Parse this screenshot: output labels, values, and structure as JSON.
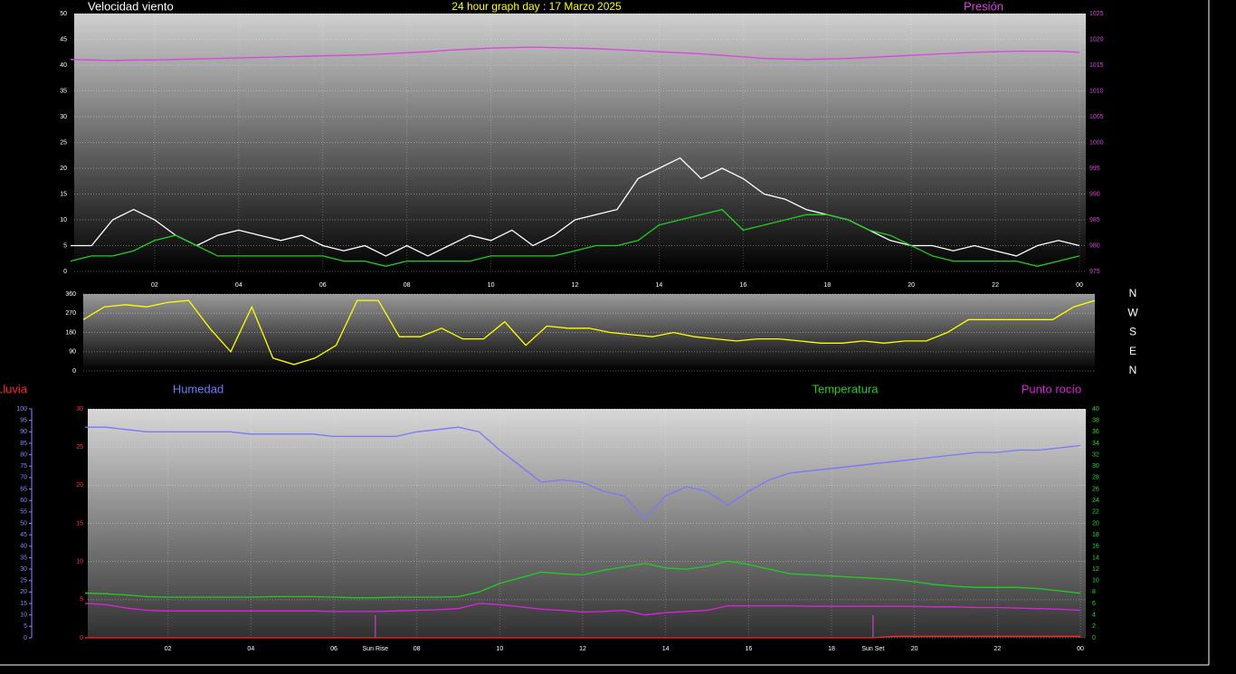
{
  "chart_data": [
    {
      "type": "line",
      "title": "24 hour graph day : 17 Marzo 2025",
      "grid": true,
      "x": [
        0,
        0.5,
        1,
        1.5,
        2,
        2.5,
        3,
        3.5,
        4,
        4.5,
        5,
        5.5,
        6,
        6.5,
        7,
        7.5,
        8,
        8.5,
        9,
        9.5,
        10,
        10.5,
        11,
        11.5,
        12,
        12.5,
        13,
        13.5,
        14,
        14.5,
        15,
        15.5,
        16,
        16.5,
        17,
        17.5,
        18,
        18.5,
        19,
        19.5,
        20,
        20.5,
        21,
        21.5,
        22,
        22.5,
        23,
        23.5,
        24
      ],
      "xlim": [
        0,
        24
      ],
      "xticks": [
        {
          "value": 2,
          "label": "02"
        },
        {
          "value": 4,
          "label": "04"
        },
        {
          "value": 6,
          "label": "06"
        },
        {
          "value": 8,
          "label": "08"
        },
        10,
        12,
        14,
        16,
        18,
        20,
        22,
        {
          "value": 24,
          "label": "00"
        }
      ],
      "ylim": [
        0,
        50
      ],
      "yticks": [
        0,
        5,
        10,
        15,
        20,
        25,
        30,
        35,
        40,
        45,
        50
      ],
      "y2lim": [
        975,
        1025
      ],
      "y2ticks": [
        975,
        980,
        985,
        990,
        995,
        1000,
        1005,
        1010,
        1015,
        1020,
        1025
      ],
      "series": [
        {
          "name": "Velocidad viento",
          "color": "#ffffff",
          "values": [
            5,
            5,
            10,
            12,
            10,
            7,
            5,
            7,
            8,
            7,
            6,
            7,
            5,
            4,
            5,
            3,
            5,
            3,
            5,
            7,
            6,
            8,
            5,
            7,
            10,
            11,
            12,
            18,
            20,
            22,
            18,
            20,
            18,
            15,
            14,
            12,
            11,
            10,
            8,
            6,
            5,
            5,
            4,
            5,
            4,
            3,
            5,
            6,
            5
          ]
        },
        {
          "color": "#22cc22",
          "values": [
            2,
            3,
            3,
            4,
            6,
            7,
            5,
            3,
            3,
            3,
            3,
            3,
            3,
            2,
            2,
            1,
            2,
            2,
            2,
            2,
            3,
            3,
            3,
            3,
            4,
            5,
            5,
            6,
            9,
            10,
            11,
            12,
            8,
            9,
            10,
            11,
            11,
            10,
            8,
            7,
            5,
            3,
            2,
            2,
            2,
            2,
            1,
            2,
            3
          ]
        },
        {
          "name": "Presión",
          "color": "#dd44dd",
          "axis": "y2",
          "values": [
            1016.1,
            1016.0,
            1015.9,
            1016.0,
            1016.0,
            1016.1,
            1016.2,
            1016.3,
            1016.4,
            1016.5,
            1016.6,
            1016.7,
            1016.8,
            1016.9,
            1017.0,
            1017.2,
            1017.4,
            1017.6,
            1017.9,
            1018.1,
            1018.3,
            1018.4,
            1018.5,
            1018.4,
            1018.3,
            1018.2,
            1018.0,
            1017.8,
            1017.6,
            1017.4,
            1017.2,
            1016.9,
            1016.6,
            1016.3,
            1016.2,
            1016.1,
            1016.2,
            1016.3,
            1016.5,
            1016.7,
            1016.9,
            1017.1,
            1017.3,
            1017.5,
            1017.6,
            1017.7,
            1017.7,
            1017.7,
            1017.5
          ]
        }
      ]
    },
    {
      "type": "line",
      "grid": true,
      "x": [
        0,
        0.5,
        1,
        1.5,
        2,
        2.5,
        3,
        3.5,
        4,
        4.5,
        5,
        5.5,
        6,
        6.5,
        7,
        7.5,
        8,
        8.5,
        9,
        9.5,
        10,
        10.5,
        11,
        11.5,
        12,
        12.5,
        13,
        13.5,
        14,
        14.5,
        15,
        15.5,
        16,
        16.5,
        17,
        17.5,
        18,
        18.5,
        19,
        19.5,
        20,
        20.5,
        21,
        21.5,
        22,
        22.5,
        23,
        23.5,
        24
      ],
      "xlim": [
        0,
        24
      ],
      "ylim": [
        0,
        360
      ],
      "yticks": [
        0,
        90,
        180,
        270,
        360
      ],
      "y2lim": [
        0,
        360
      ],
      "y2ticks": [
        {
          "value": 360,
          "label": "N"
        },
        {
          "value": 270,
          "label": "W"
        },
        {
          "value": 180,
          "label": "S"
        },
        {
          "value": 90,
          "label": "E"
        },
        {
          "value": 0,
          "label": "N"
        }
      ],
      "series": [
        {
          "color": "#ffff00",
          "values": [
            240,
            300,
            310,
            300,
            320,
            330,
            200,
            90,
            300,
            60,
            30,
            60,
            120,
            330,
            330,
            160,
            160,
            200,
            150,
            150,
            230,
            120,
            210,
            200,
            200,
            180,
            170,
            160,
            180,
            160,
            150,
            140,
            150,
            150,
            140,
            130,
            130,
            140,
            130,
            140,
            140,
            180,
            240,
            240,
            240,
            240,
            240,
            300,
            330
          ]
        }
      ]
    },
    {
      "type": "line",
      "grid": true,
      "x": [
        0,
        0.5,
        1,
        1.5,
        2,
        2.5,
        3,
        3.5,
        4,
        4.5,
        5,
        5.5,
        6,
        6.5,
        7,
        7.5,
        8,
        8.5,
        9,
        9.5,
        10,
        10.5,
        11,
        11.5,
        12,
        12.5,
        13,
        13.5,
        14,
        14.5,
        15,
        15.5,
        16,
        16.5,
        17,
        17.5,
        18,
        18.5,
        19,
        19.5,
        20,
        20.5,
        21,
        21.5,
        22,
        22.5,
        23,
        23.5,
        24
      ],
      "xlim": [
        0,
        24
      ],
      "xticks": [
        {
          "value": 2,
          "label": "02"
        },
        {
          "value": 4,
          "label": "04"
        },
        {
          "value": 6,
          "label": "06"
        },
        {
          "value": 8,
          "label": "08"
        },
        10,
        12,
        14,
        16,
        18,
        20,
        22,
        {
          "value": 24,
          "label": "00"
        }
      ],
      "ylim": [
        0,
        30
      ],
      "yticks": [
        0,
        5,
        10,
        15,
        20,
        25,
        30
      ],
      "y2lim": [
        0,
        40
      ],
      "y2ticks": [
        0,
        2,
        4,
        6,
        8,
        10,
        12,
        14,
        16,
        18,
        20,
        22,
        24,
        26,
        28,
        30,
        32,
        34,
        36,
        38,
        40
      ],
      "y3lim": [
        0,
        100
      ],
      "y3ticks": [
        0,
        5,
        10,
        15,
        20,
        25,
        30,
        35,
        40,
        45,
        50,
        55,
        60,
        65,
        70,
        75,
        80,
        85,
        90,
        95,
        100
      ],
      "annotations": [
        {
          "x": 7,
          "label": "Sun Rise"
        },
        {
          "x": 19,
          "label": "Sun Set"
        }
      ],
      "series": [
        {
          "name": "Lluvia",
          "color": "#ff2222",
          "values": [
            0,
            0,
            0,
            0,
            0,
            0,
            0,
            0,
            0,
            0,
            0,
            0,
            0,
            0,
            0,
            0,
            0,
            0,
            0,
            0,
            0,
            0,
            0,
            0,
            0,
            0,
            0,
            0,
            0,
            0,
            0,
            0,
            0,
            0,
            0,
            0,
            0,
            0,
            0,
            0.2,
            0.2,
            0.2,
            0.2,
            0.2,
            0.2,
            0.2,
            0.2,
            0.2,
            0.2
          ]
        },
        {
          "name": "Humedad",
          "color": "#7777ff",
          "axis": "y3",
          "values": [
            92,
            92,
            91,
            90,
            90,
            90,
            90,
            90,
            89,
            89,
            89,
            89,
            88,
            88,
            88,
            88,
            90,
            91,
            92,
            90,
            82,
            75,
            68,
            69,
            68,
            64,
            62,
            52,
            62,
            66,
            64,
            58,
            64,
            69,
            72,
            73,
            74,
            75,
            76,
            77,
            78,
            79,
            80,
            81,
            81,
            82,
            82,
            83,
            84
          ]
        },
        {
          "name": "Temperatura",
          "color": "#22cc22",
          "axis": "y2",
          "values": [
            7.8,
            7.7,
            7.5,
            7.2,
            7.1,
            7.1,
            7.1,
            7.1,
            7.1,
            7.2,
            7.2,
            7.2,
            7.1,
            7.0,
            7.0,
            7.1,
            7.1,
            7.1,
            7.2,
            8.0,
            9.5,
            10.5,
            11.5,
            11.2,
            11.0,
            11.8,
            12.4,
            13.0,
            12.2,
            12.0,
            12.5,
            13.4,
            12.8,
            12.0,
            11.2,
            11.0,
            10.8,
            10.6,
            10.4,
            10.2,
            9.8,
            9.3,
            9.0,
            8.8,
            8.8,
            8.8,
            8.6,
            8.2,
            7.8
          ]
        },
        {
          "name": "Punto rocío",
          "color": "#dd22dd",
          "axis": "y2",
          "values": [
            6.0,
            5.8,
            5.2,
            4.8,
            4.7,
            4.7,
            4.7,
            4.7,
            4.7,
            4.7,
            4.7,
            4.7,
            4.6,
            4.6,
            4.6,
            4.7,
            4.8,
            4.9,
            5.1,
            6.0,
            5.8,
            5.4,
            5.0,
            4.8,
            4.5,
            4.6,
            4.8,
            4.0,
            4.4,
            4.6,
            4.8,
            5.6,
            5.6,
            5.6,
            5.6,
            5.5,
            5.5,
            5.5,
            5.5,
            5.5,
            5.5,
            5.4,
            5.4,
            5.3,
            5.3,
            5.2,
            5.1,
            5.0,
            4.8
          ]
        }
      ]
    }
  ]
}
